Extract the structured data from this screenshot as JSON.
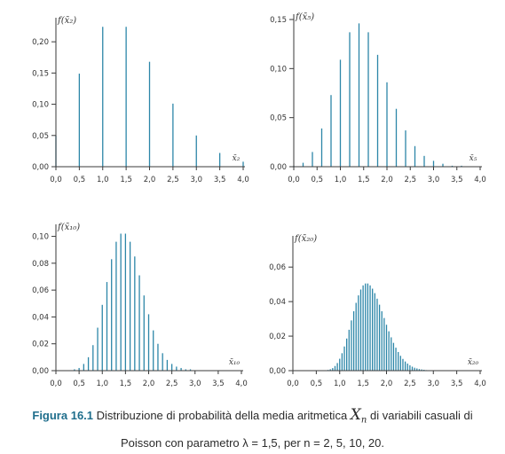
{
  "caption": {
    "label": "Figura 16.1",
    "line1_text": "Distribuzione di probabilità della media aritmetica",
    "symbol": "X",
    "symbol_sub": "n",
    "line1_tail": "di variabili casuali di",
    "line2": "Poisson con parametro λ = 1,5, per n = 2, 5, 10, 20."
  },
  "colors": {
    "bar": "#2c86a8",
    "axis": "#3a3a3a",
    "text": "#333333",
    "caption_label": "#1f6e8c"
  },
  "chart_data": [
    {
      "type": "bar",
      "ylabel": "f(x̄₂)",
      "xlabel": "x̄₂",
      "ylim": [
        0,
        0.23
      ],
      "xlim": [
        0,
        4
      ],
      "yticks": [
        "0,00",
        "0,05",
        "0,10",
        "0,15",
        "0,20"
      ],
      "ytick_values": [
        0,
        0.05,
        0.1,
        0.15,
        0.2
      ],
      "xticks": [
        "0,0",
        "0,5",
        "1,0",
        "1,5",
        "2,0",
        "2,5",
        "3,0",
        "3,5",
        "4,0"
      ],
      "x": [
        0.0,
        0.5,
        1.0,
        1.5,
        2.0,
        2.5,
        3.0,
        3.5,
        4.0
      ],
      "values": [
        0.05,
        0.149,
        0.224,
        0.224,
        0.168,
        0.101,
        0.05,
        0.022,
        0.008
      ]
    },
    {
      "type": "bar",
      "ylabel": "f(x̄₅)",
      "xlabel": "x̄₅",
      "ylim": [
        0,
        0.15
      ],
      "xlim": [
        0,
        4
      ],
      "yticks": [
        "0,00",
        "0,05",
        "0,10",
        "0,15"
      ],
      "ytick_values": [
        0,
        0.05,
        0.1,
        0.15
      ],
      "xticks": [
        "0,0",
        "0,5",
        "1,0",
        "1,5",
        "2,0",
        "2,5",
        "3,0",
        "3,5",
        "4,0"
      ],
      "x": [
        0.0,
        0.2,
        0.4,
        0.6,
        0.8,
        1.0,
        1.2,
        1.4,
        1.6,
        1.8,
        2.0,
        2.2,
        2.4,
        2.6,
        2.8,
        3.0,
        3.2,
        3.4,
        3.6,
        3.8,
        4.0
      ],
      "values": [
        0.001,
        0.004,
        0.015,
        0.039,
        0.073,
        0.109,
        0.137,
        0.146,
        0.137,
        0.114,
        0.086,
        0.059,
        0.037,
        0.021,
        0.011,
        0.006,
        0.003,
        0.001,
        0.001,
        0.0,
        0.0
      ]
    },
    {
      "type": "bar",
      "ylabel": "f(x̄₁₀)",
      "xlabel": "x̄₁₀",
      "ylim": [
        0,
        0.105
      ],
      "xlim": [
        0,
        4
      ],
      "yticks": [
        "0,00",
        "0,02",
        "0,04",
        "0,06",
        "0,08",
        "0,10"
      ],
      "ytick_values": [
        0,
        0.02,
        0.04,
        0.06,
        0.08,
        0.1
      ],
      "xticks": [
        "0,0",
        "0,5",
        "1,0",
        "1,5",
        "2,0",
        "2,5",
        "3,0",
        "3,5",
        "4,0"
      ],
      "x": [
        0.0,
        0.1,
        0.2,
        0.3,
        0.4,
        0.5,
        0.6,
        0.7,
        0.8,
        0.9,
        1.0,
        1.1,
        1.2,
        1.3,
        1.4,
        1.5,
        1.6,
        1.7,
        1.8,
        1.9,
        2.0,
        2.1,
        2.2,
        2.3,
        2.4,
        2.5,
        2.6,
        2.7,
        2.8,
        2.9,
        3.0,
        3.1,
        3.2,
        3.3,
        3.4,
        3.5,
        3.6,
        3.7,
        3.8,
        3.9,
        4.0
      ],
      "values": [
        0.0,
        0.0,
        0.0,
        0.0,
        0.001,
        0.002,
        0.005,
        0.01,
        0.019,
        0.032,
        0.049,
        0.066,
        0.083,
        0.096,
        0.102,
        0.102,
        0.096,
        0.085,
        0.071,
        0.056,
        0.042,
        0.03,
        0.02,
        0.013,
        0.008,
        0.005,
        0.003,
        0.002,
        0.001,
        0.001,
        0.0,
        0.0,
        0.0,
        0.0,
        0.0,
        0.0,
        0.0,
        0.0,
        0.0,
        0.0,
        0.0
      ]
    },
    {
      "type": "bar",
      "ylabel": "f(x̄₂₀)",
      "xlabel": "x̄₂₀",
      "ylim": [
        0,
        0.075
      ],
      "xlim": [
        0,
        4
      ],
      "yticks": [
        "0,00",
        "0,02",
        "0,04",
        "0,06"
      ],
      "ytick_values": [
        0,
        0.02,
        0.04,
        0.06
      ],
      "xticks": [
        "0,0",
        "0,5",
        "1,0",
        "1,5",
        "2,0",
        "2,5",
        "3,0",
        "3,5",
        "4,0"
      ],
      "x_start": 0,
      "x_step": 0.05,
      "values": [
        0,
        0,
        0,
        0,
        0,
        0,
        0,
        0,
        0,
        0,
        0,
        0,
        0,
        0,
        0.0002,
        0.0004,
        0.0008,
        0.0015,
        0.0027,
        0.0044,
        0.0069,
        0.0101,
        0.014,
        0.0186,
        0.0237,
        0.0291,
        0.0344,
        0.0393,
        0.0436,
        0.047,
        0.0494,
        0.0505,
        0.0505,
        0.0494,
        0.0475,
        0.0449,
        0.0417,
        0.0382,
        0.0344,
        0.0305,
        0.0266,
        0.0228,
        0.0193,
        0.0161,
        0.0133,
        0.0108,
        0.0086,
        0.0068,
        0.0053,
        0.0041,
        0.0031,
        0.0023,
        0.0017,
        0.0013,
        0.0009,
        0.0007,
        0.0005,
        0.0003,
        0.0002,
        0.0001,
        0.0001,
        0,
        0,
        0,
        0,
        0,
        0,
        0,
        0,
        0,
        0,
        0,
        0,
        0,
        0,
        0,
        0,
        0,
        0,
        0,
        0
      ]
    }
  ]
}
